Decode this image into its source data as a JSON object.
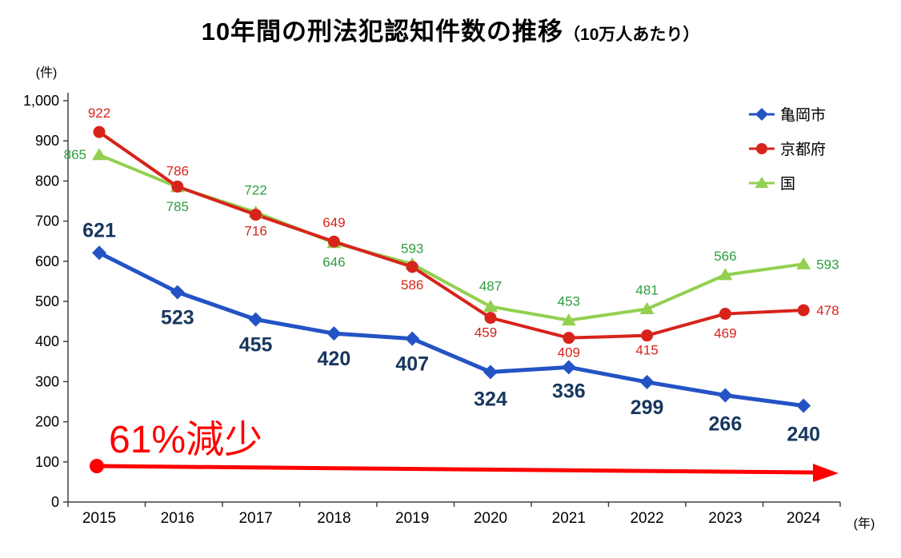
{
  "title": {
    "main": "10年間の刑法犯認知件数の推移",
    "sub": "（10万人あたり）"
  },
  "chart_data": {
    "type": "line",
    "title": "10年間の刑法犯認知件数の推移（10万人あたり）",
    "categories": [
      "2015",
      "2016",
      "2017",
      "2018",
      "2019",
      "2020",
      "2021",
      "2022",
      "2023",
      "2024"
    ],
    "series": [
      {
        "name": "亀岡市",
        "marker": "diamond",
        "line_color": "#2353c4",
        "label_color": "#17375e",
        "values": [
          621,
          523,
          455,
          420,
          407,
          324,
          336,
          299,
          266,
          240
        ]
      },
      {
        "name": "京都府",
        "marker": "circle",
        "line_color": "#d7241b",
        "label_color": "#d7241b",
        "values": [
          922,
          786,
          716,
          649,
          586,
          459,
          409,
          415,
          469,
          478
        ]
      },
      {
        "name": "国",
        "marker": "triangle",
        "line_color": "#92d050",
        "label_color": "#2f9e3f",
        "values": [
          865,
          785,
          722,
          646,
          593,
          487,
          453,
          481,
          566,
          593
        ]
      }
    ],
    "ylabel": "(件)",
    "xlabel": "(年)",
    "ylim": [
      0,
      1000
    ],
    "ytick_step": 100,
    "grid": false,
    "legend_position": "top-right",
    "annotation": {
      "text": "61%減少",
      "color": "#ff0000"
    }
  }
}
